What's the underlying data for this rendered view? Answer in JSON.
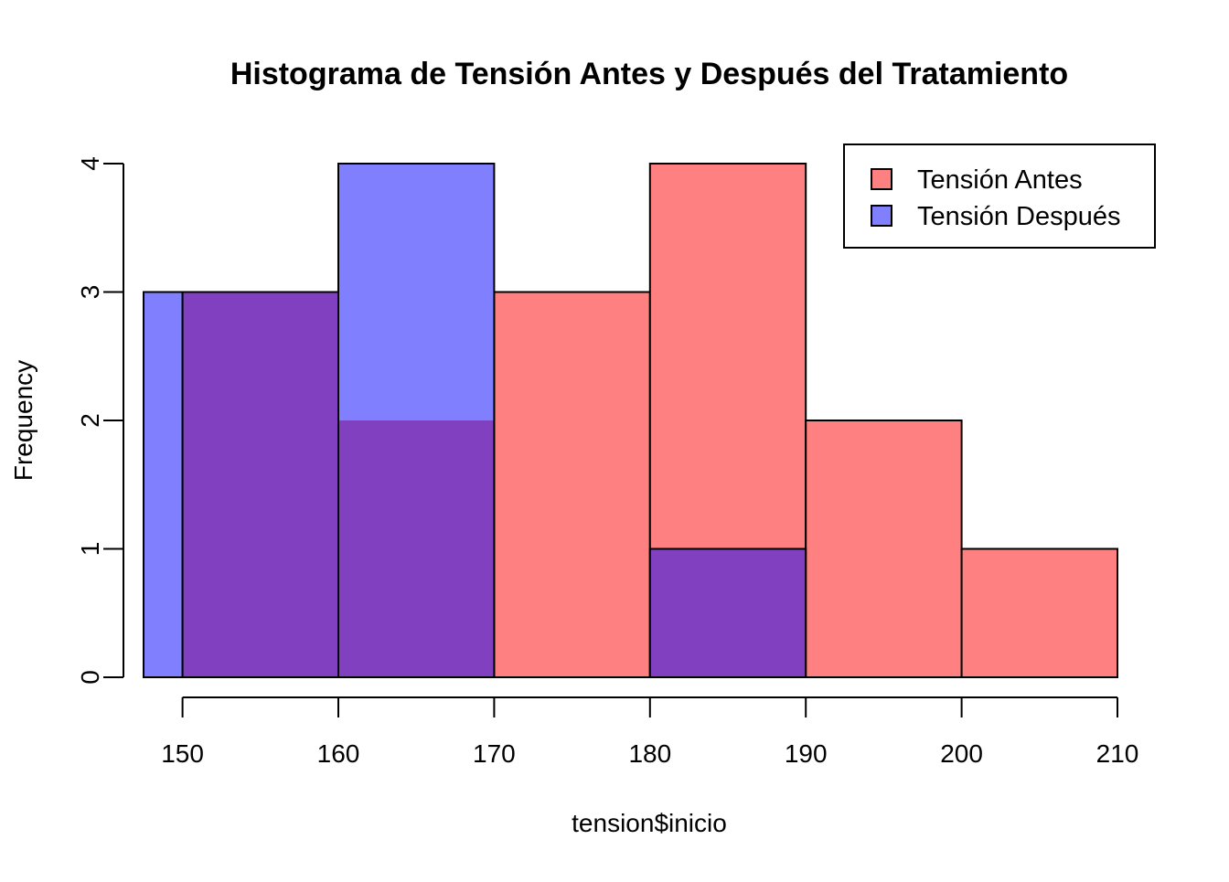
{
  "chart_data": {
    "type": "histogram",
    "title": "Histograma de Tensión Antes y Después del Tratamiento",
    "xlabel": "tension$inicio",
    "ylabel": "Frequency",
    "xlim": [
      147.5,
      210
    ],
    "ylim": [
      0,
      4
    ],
    "x_ticks": [
      "150",
      "160",
      "170",
      "180",
      "190",
      "200",
      "210"
    ],
    "y_ticks": [
      "0",
      "1",
      "2",
      "3",
      "4"
    ],
    "grid": false,
    "legend": {
      "position": "top-right",
      "entries": [
        "Tensión Antes",
        "Tensión Después"
      ]
    },
    "colors": {
      "antes": "#ff8080",
      "despues": "#8080ff",
      "overlap": "#8040c0",
      "stroke": "#000000"
    },
    "series": [
      {
        "name": "Tensión Antes",
        "bins": [
          {
            "start": 150,
            "end": 160,
            "count": 3
          },
          {
            "start": 160,
            "end": 170,
            "count": 2
          },
          {
            "start": 170,
            "end": 180,
            "count": 3
          },
          {
            "start": 180,
            "end": 190,
            "count": 4
          },
          {
            "start": 190,
            "end": 200,
            "count": 2
          },
          {
            "start": 200,
            "end": 210,
            "count": 1
          }
        ]
      },
      {
        "name": "Tensión Después",
        "bins": [
          {
            "start": 147.5,
            "end": 150,
            "count": 3
          },
          {
            "start": 150,
            "end": 160,
            "count": 3
          },
          {
            "start": 160,
            "end": 170,
            "count": 4
          },
          {
            "start": 170,
            "end": 180,
            "count": 0
          },
          {
            "start": 180,
            "end": 190,
            "count": 1
          }
        ]
      }
    ]
  }
}
